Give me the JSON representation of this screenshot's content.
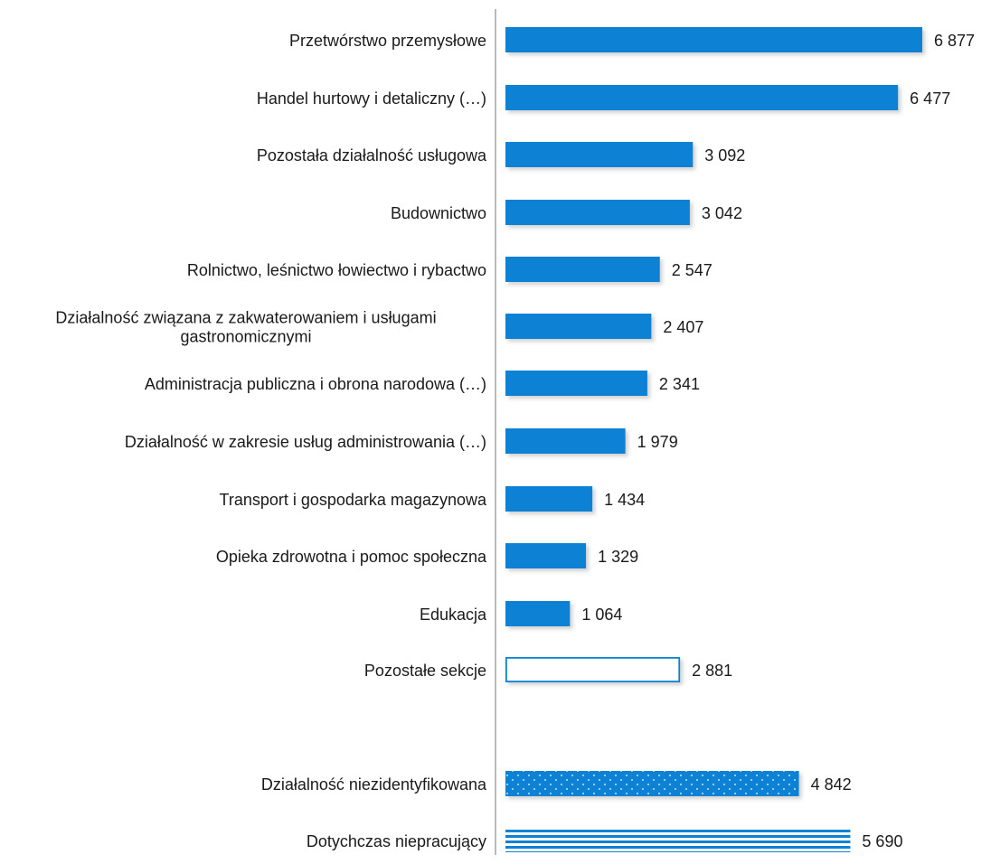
{
  "chart_data": {
    "type": "bar",
    "orientation": "horizontal",
    "title": "",
    "xlabel": "",
    "ylabel": "",
    "grid": false,
    "legend": "none",
    "xlim": [
      0,
      6877
    ],
    "colors": {
      "bar": "#0b82d4",
      "bar_outline": "#0b82d4",
      "axis": "#8c8c8c",
      "text": "#1a1a1a"
    },
    "categories": [
      [
        "Przetwórstwo przemysłowe"
      ],
      [
        "Handel hurtowy i detaliczny (…)"
      ],
      [
        "Pozostała działalność usługowa"
      ],
      [
        "Budownictwo"
      ],
      [
        "Rolnictwo, leśnictwo łowiectwo i rybactwo"
      ],
      [
        "Działalność związana z zakwaterowaniem i usługami",
        "gastronomicznymi"
      ],
      [
        "Administracja publiczna i obrona narodowa (…)"
      ],
      [
        "Działalność w zakresie usług administrowania (…)"
      ],
      [
        "Transport i gospodarka magazynowa"
      ],
      [
        "Opieka zdrowotna i pomoc społeczna"
      ],
      [
        "Edukacja"
      ],
      [
        "Pozostałe sekcje"
      ],
      [
        "Działalność niezidentyfikowana"
      ],
      [
        "Dotychczas niepracujący"
      ]
    ],
    "values": [
      6877,
      6477,
      3092,
      3042,
      2547,
      2407,
      2341,
      1979,
      1434,
      1329,
      1064,
      2881,
      4842,
      5690
    ],
    "value_labels": [
      "6 877",
      "6 477",
      "3 092",
      "3 042",
      "2 547",
      "2 407",
      "2 341",
      "1 979",
      "1 434",
      "1 329",
      "1 064",
      "2 881",
      "4 842",
      "5 690"
    ],
    "bar_styles": [
      "solid",
      "solid",
      "solid",
      "solid",
      "solid",
      "solid",
      "solid",
      "solid",
      "solid",
      "solid",
      "solid",
      "outline",
      "dotted",
      "striped"
    ]
  }
}
